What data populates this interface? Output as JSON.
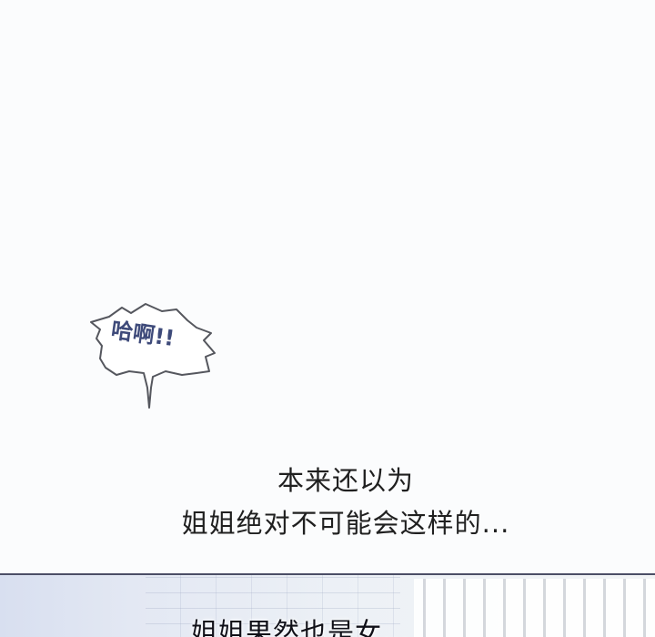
{
  "bubble": {
    "text": "哈啊!!",
    "color": "#3e4a7a"
  },
  "narration": {
    "line1": "本来还以为",
    "line2": "姐姐绝对不可能会这样的..."
  },
  "bottom_panel": {
    "text": "姐姐果然也是女..."
  },
  "colors": {
    "background": "#fbfcfd",
    "text": "#202020",
    "panel_border": "#4b4e66"
  }
}
